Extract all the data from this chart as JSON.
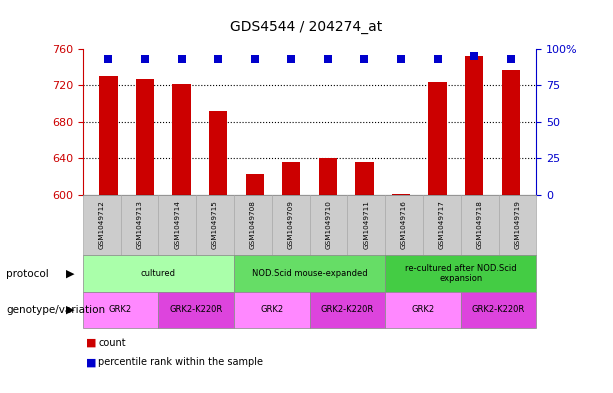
{
  "title": "GDS4544 / 204274_at",
  "samples": [
    "GSM1049712",
    "GSM1049713",
    "GSM1049714",
    "GSM1049715",
    "GSM1049708",
    "GSM1049709",
    "GSM1049710",
    "GSM1049711",
    "GSM1049716",
    "GSM1049717",
    "GSM1049718",
    "GSM1049719"
  ],
  "counts": [
    730,
    727,
    722,
    692,
    623,
    636,
    640,
    636,
    601,
    724,
    752,
    737
  ],
  "percentiles": [
    93,
    93,
    93,
    93,
    93,
    93,
    93,
    93,
    93,
    93,
    95,
    93
  ],
  "ylim_left": [
    600,
    760
  ],
  "ylim_right": [
    0,
    100
  ],
  "yticks_left": [
    600,
    640,
    680,
    720,
    760
  ],
  "yticks_right": [
    0,
    25,
    50,
    75,
    100
  ],
  "bar_color": "#cc0000",
  "dot_color": "#0000cc",
  "bar_width": 0.5,
  "dot_size": 40,
  "protocol_groups": [
    {
      "label": "cultured",
      "start": 0,
      "end": 3,
      "color": "#aaffaa"
    },
    {
      "label": "NOD.Scid mouse-expanded",
      "start": 4,
      "end": 7,
      "color": "#66dd66"
    },
    {
      "label": "re-cultured after NOD.Scid\nexpansion",
      "start": 8,
      "end": 11,
      "color": "#44cc44"
    }
  ],
  "genotype_groups": [
    {
      "label": "GRK2",
      "start": 0,
      "end": 1,
      "color": "#ff88ff"
    },
    {
      "label": "GRK2-K220R",
      "start": 2,
      "end": 3,
      "color": "#dd44dd"
    },
    {
      "label": "GRK2",
      "start": 4,
      "end": 5,
      "color": "#ff88ff"
    },
    {
      "label": "GRK2-K220R",
      "start": 6,
      "end": 7,
      "color": "#dd44dd"
    },
    {
      "label": "GRK2",
      "start": 8,
      "end": 9,
      "color": "#ff88ff"
    },
    {
      "label": "GRK2-K220R",
      "start": 10,
      "end": 11,
      "color": "#dd44dd"
    }
  ],
  "axis_label_color_left": "#cc0000",
  "axis_label_color_right": "#0000cc"
}
